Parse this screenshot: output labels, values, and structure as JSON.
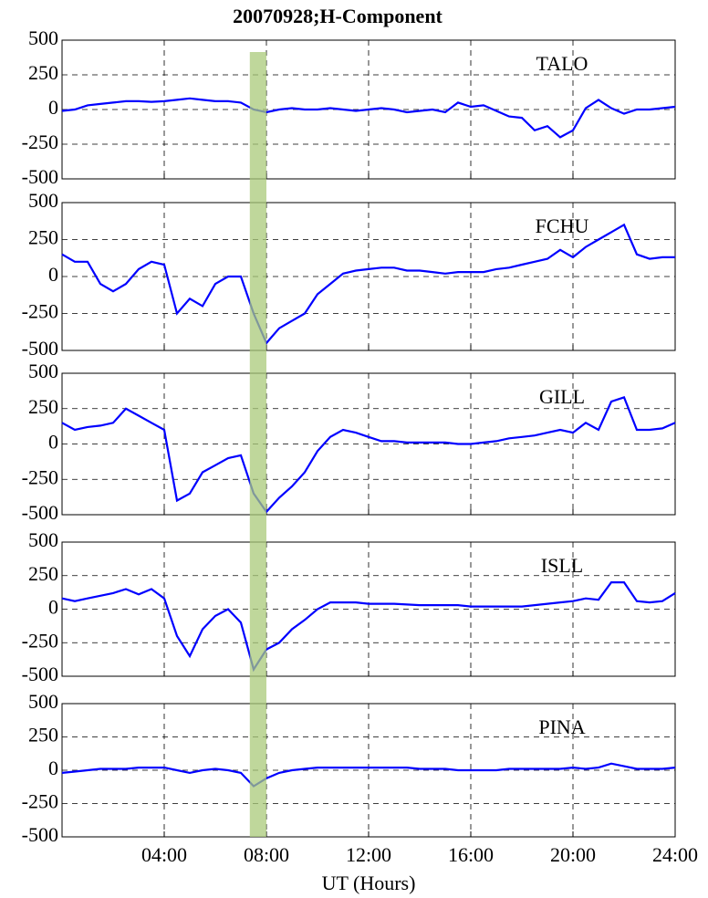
{
  "title": "20070928;H-Component",
  "xlabel": "UT (Hours)",
  "xlim": [
    0,
    24
  ],
  "xticks": [
    {
      "value": 4,
      "label": "04:00"
    },
    {
      "value": 8,
      "label": "08:00"
    },
    {
      "value": 12,
      "label": "12:00"
    },
    {
      "value": 16,
      "label": "16:00"
    },
    {
      "value": 20,
      "label": "20:00"
    },
    {
      "value": 24,
      "label": "24:00"
    }
  ],
  "highlight": {
    "x": [
      7.35,
      8.0
    ],
    "color": "#a9c97a"
  },
  "chart_data": [
    {
      "type": "line",
      "label": "TALO",
      "ylim": [
        -500,
        500
      ],
      "yticks": [
        -500,
        -250,
        0,
        250,
        500
      ],
      "grid": true,
      "x": [
        0,
        0.5,
        1,
        1.5,
        2,
        2.5,
        3,
        3.5,
        4,
        4.5,
        5,
        5.5,
        6,
        6.5,
        7,
        7.5,
        8,
        8.5,
        9,
        9.5,
        10,
        10.5,
        11,
        11.5,
        12,
        12.5,
        13,
        13.5,
        14,
        14.5,
        15,
        15.5,
        16,
        16.5,
        17,
        17.5,
        18,
        18.5,
        19,
        19.5,
        20,
        20.5,
        21,
        21.5,
        22,
        22.5,
        23,
        23.5,
        24
      ],
      "series": [
        {
          "color": "#0000ff",
          "values": [
            -10,
            0,
            30,
            40,
            50,
            60,
            60,
            55,
            60,
            70,
            80,
            70,
            60,
            60,
            50,
            0,
            -20,
            0,
            10,
            0,
            0,
            10,
            0,
            -10,
            0,
            10,
            0,
            -20,
            -10,
            0,
            -20,
            50,
            20,
            30,
            -10,
            -50,
            -60,
            -150,
            -120,
            -200,
            -150,
            10,
            70,
            10,
            -30,
            0,
            0,
            10,
            20
          ]
        }
      ]
    },
    {
      "type": "line",
      "label": "FCHU",
      "ylim": [
        -500,
        500
      ],
      "yticks": [
        -500,
        -250,
        0,
        250,
        500
      ],
      "grid": true,
      "x": [
        0,
        0.5,
        1,
        1.5,
        2,
        2.5,
        3,
        3.5,
        4,
        4.5,
        5,
        5.5,
        6,
        6.5,
        7,
        7.5,
        8,
        8.5,
        9,
        9.5,
        10,
        10.5,
        11,
        11.5,
        12,
        12.5,
        13,
        13.5,
        14,
        14.5,
        15,
        15.5,
        16,
        16.5,
        17,
        17.5,
        18,
        18.5,
        19,
        19.5,
        20,
        20.5,
        21,
        21.5,
        22,
        22.5,
        23,
        23.5,
        24
      ],
      "series": [
        {
          "color": "#0000ff",
          "values": [
            150,
            100,
            100,
            -50,
            -100,
            -50,
            50,
            100,
            80,
            -250,
            -150,
            -200,
            -50,
            0,
            0,
            -250,
            -450,
            -350,
            -300,
            -250,
            -120,
            -50,
            20,
            40,
            50,
            60,
            60,
            40,
            40,
            30,
            20,
            30,
            30,
            30,
            50,
            60,
            80,
            100,
            120,
            180,
            130,
            200,
            250,
            300,
            350,
            150,
            120,
            130,
            130
          ]
        }
      ]
    },
    {
      "type": "line",
      "label": "GILL",
      "ylim": [
        -500,
        500
      ],
      "yticks": [
        -500,
        -250,
        0,
        250,
        500
      ],
      "grid": true,
      "x": [
        0,
        0.5,
        1,
        1.5,
        2,
        2.5,
        3,
        3.5,
        4,
        4.5,
        5,
        5.5,
        6,
        6.5,
        7,
        7.5,
        8,
        8.5,
        9,
        9.5,
        10,
        10.5,
        11,
        11.5,
        12,
        12.5,
        13,
        13.5,
        14,
        14.5,
        15,
        15.5,
        16,
        16.5,
        17,
        17.5,
        18,
        18.5,
        19,
        19.5,
        20,
        20.5,
        21,
        21.5,
        22,
        22.5,
        23,
        23.5,
        24
      ],
      "series": [
        {
          "color": "#0000ff",
          "values": [
            150,
            100,
            120,
            130,
            150,
            250,
            200,
            150,
            100,
            -400,
            -350,
            -200,
            -150,
            -100,
            -80,
            -350,
            -480,
            -380,
            -300,
            -200,
            -50,
            50,
            100,
            80,
            50,
            20,
            20,
            10,
            10,
            10,
            10,
            0,
            0,
            10,
            20,
            40,
            50,
            60,
            80,
            100,
            80,
            150,
            100,
            300,
            330,
            100,
            100,
            110,
            150
          ]
        }
      ]
    },
    {
      "type": "line",
      "label": "ISLL",
      "ylim": [
        -500,
        500
      ],
      "yticks": [
        -500,
        -250,
        0,
        250,
        500
      ],
      "grid": true,
      "x": [
        0,
        0.5,
        1,
        1.5,
        2,
        2.5,
        3,
        3.5,
        4,
        4.5,
        5,
        5.5,
        6,
        6.5,
        7,
        7.5,
        8,
        8.5,
        9,
        9.5,
        10,
        10.5,
        11,
        11.5,
        12,
        12.5,
        13,
        13.5,
        14,
        14.5,
        15,
        15.5,
        16,
        16.5,
        17,
        17.5,
        18,
        18.5,
        19,
        19.5,
        20,
        20.5,
        21,
        21.5,
        22,
        22.5,
        23,
        23.5,
        24
      ],
      "series": [
        {
          "color": "#0000ff",
          "values": [
            80,
            60,
            80,
            100,
            120,
            150,
            110,
            150,
            80,
            -200,
            -350,
            -150,
            -50,
            0,
            -100,
            -450,
            -300,
            -250,
            -150,
            -80,
            0,
            50,
            50,
            50,
            40,
            40,
            40,
            35,
            30,
            30,
            30,
            30,
            20,
            20,
            20,
            20,
            20,
            30,
            40,
            50,
            60,
            80,
            70,
            200,
            200,
            60,
            50,
            60,
            120
          ]
        }
      ]
    },
    {
      "type": "line",
      "label": "PINA",
      "ylim": [
        -500,
        500
      ],
      "yticks": [
        -500,
        -250,
        0,
        250,
        500
      ],
      "grid": true,
      "x": [
        0,
        0.5,
        1,
        1.5,
        2,
        2.5,
        3,
        3.5,
        4,
        4.5,
        5,
        5.5,
        6,
        6.5,
        7,
        7.5,
        8,
        8.5,
        9,
        9.5,
        10,
        10.5,
        11,
        11.5,
        12,
        12.5,
        13,
        13.5,
        14,
        14.5,
        15,
        15.5,
        16,
        16.5,
        17,
        17.5,
        18,
        18.5,
        19,
        19.5,
        20,
        20.5,
        21,
        21.5,
        22,
        22.5,
        23,
        23.5,
        24
      ],
      "series": [
        {
          "color": "#0000ff",
          "values": [
            -20,
            -10,
            0,
            10,
            10,
            10,
            20,
            20,
            20,
            0,
            -20,
            0,
            10,
            0,
            -20,
            -120,
            -60,
            -20,
            0,
            10,
            20,
            20,
            20,
            20,
            20,
            20,
            20,
            20,
            10,
            10,
            10,
            0,
            0,
            0,
            0,
            10,
            10,
            10,
            10,
            10,
            20,
            10,
            20,
            50,
            30,
            10,
            10,
            10,
            20
          ]
        }
      ]
    }
  ]
}
